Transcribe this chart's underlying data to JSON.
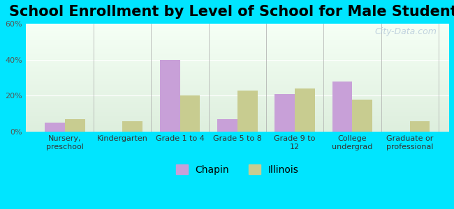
{
  "title": "School Enrollment by Level of School for Male Students",
  "categories": [
    "Nursery,\npreschool",
    "Kindergarten",
    "Grade 1 to 4",
    "Grade 5 to 8",
    "Grade 9 to\n12",
    "College\nundergrad",
    "Graduate or\nprofessional"
  ],
  "chapin": [
    5,
    0,
    40,
    7,
    21,
    28,
    0
  ],
  "illinois": [
    7,
    6,
    20,
    23,
    24,
    18,
    6
  ],
  "chapin_color": "#c8a0d8",
  "illinois_color": "#c8cc90",
  "background_outer": "#00e5ff",
  "ylim": [
    0,
    60
  ],
  "yticks": [
    0,
    20,
    40,
    60
  ],
  "ytick_labels": [
    "0%",
    "20%",
    "40%",
    "60%"
  ],
  "bar_width": 0.35,
  "title_fontsize": 15,
  "tick_fontsize": 8,
  "legend_fontsize": 10,
  "watermark": "City-Data.com"
}
